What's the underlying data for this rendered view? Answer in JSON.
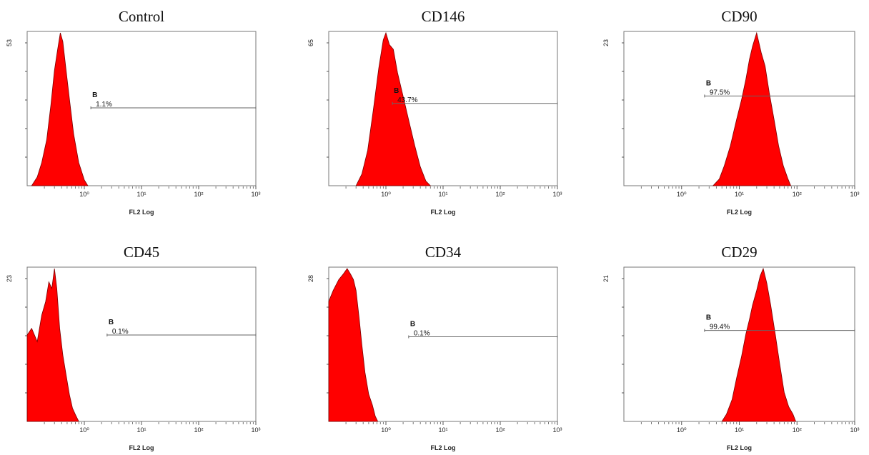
{
  "chart_data": [
    {
      "type": "area",
      "title": "Control",
      "xlabel": "FL2 Log",
      "xscale": "log",
      "xlim": [
        0.1,
        1000
      ],
      "ylabel_value": "53",
      "ylim": [
        0,
        53
      ],
      "x_tick_labels": [
        "10⁰",
        "10¹",
        "10²",
        "10³"
      ],
      "x_tick_values": [
        1,
        10,
        100,
        1000
      ],
      "gate": {
        "label": "B",
        "percent": "1.1%",
        "start": 1.3,
        "end": 1000,
        "level": 27
      },
      "x": [
        0.12,
        0.15,
        0.18,
        0.22,
        0.26,
        0.3,
        0.34,
        0.38,
        0.42,
        0.48,
        0.55,
        0.65,
        0.8,
        1.0,
        1.15
      ],
      "y": [
        0,
        3,
        8,
        16,
        28,
        40,
        47,
        53,
        50,
        40,
        30,
        18,
        8,
        2,
        0
      ]
    },
    {
      "type": "area",
      "title": "CD146",
      "xlabel": "FL2 Log",
      "xscale": "log",
      "xlim": [
        0.1,
        1000
      ],
      "ylabel_value": "65",
      "ylim": [
        0,
        65
      ],
      "x_tick_labels": [
        "10⁰",
        "10¹",
        "10²",
        "10³"
      ],
      "x_tick_values": [
        1,
        10,
        100,
        1000
      ],
      "gate": {
        "label": "B",
        "percent": "43.7%",
        "start": 1.3,
        "end": 1000,
        "level": 35
      },
      "x": [
        0.3,
        0.38,
        0.48,
        0.6,
        0.75,
        0.9,
        1.0,
        1.15,
        1.35,
        1.6,
        2.0,
        2.5,
        3.2,
        4.0,
        5.0,
        6.0
      ],
      "y": [
        0,
        5,
        15,
        32,
        50,
        62,
        65,
        60,
        58,
        48,
        38,
        28,
        17,
        8,
        2,
        0
      ]
    },
    {
      "type": "area",
      "title": "CD90",
      "xlabel": "FL2 Log",
      "xscale": "log",
      "xlim": [
        0.1,
        1000
      ],
      "ylabel_value": "23",
      "ylim": [
        0,
        23
      ],
      "x_tick_labels": [
        "10⁰",
        "10¹",
        "10²",
        "10³"
      ],
      "x_tick_values": [
        1,
        10,
        100,
        1000
      ],
      "gate": {
        "label": "B",
        "percent": "97.5%",
        "start": 2.5,
        "end": 1000,
        "level": 13.5
      },
      "x": [
        3.5,
        4.5,
        5.5,
        7,
        9,
        11,
        13,
        15,
        17,
        20,
        24,
        28,
        33,
        40,
        48,
        58,
        70,
        78
      ],
      "y": [
        0,
        1,
        3,
        6,
        10,
        13,
        16,
        19,
        21,
        23,
        20,
        18,
        14,
        10,
        6,
        3,
        1,
        0
      ]
    },
    {
      "type": "area",
      "title": "CD45",
      "xlabel": "FL2 Log",
      "xscale": "log",
      "xlim": [
        0.1,
        1000
      ],
      "ylabel_value": "23",
      "ylim": [
        0,
        23
      ],
      "x_tick_labels": [
        "10⁰",
        "10¹",
        "10²",
        "10³"
      ],
      "x_tick_values": [
        1,
        10,
        100,
        1000
      ],
      "gate": {
        "label": "B",
        "percent": "0.1%",
        "start": 2.5,
        "end": 1000,
        "level": 13
      },
      "x": [
        0.1,
        0.12,
        0.15,
        0.18,
        0.21,
        0.24,
        0.27,
        0.3,
        0.33,
        0.37,
        0.42,
        0.48,
        0.55,
        0.62,
        0.7,
        0.8
      ],
      "y": [
        13,
        14,
        12,
        16,
        18,
        21,
        20,
        23,
        20,
        14,
        10,
        7,
        4,
        2,
        1,
        0
      ]
    },
    {
      "type": "area",
      "title": "CD34",
      "xlabel": "FL2 Log",
      "xscale": "log",
      "xlim": [
        0.1,
        1000
      ],
      "ylabel_value": "28",
      "ylim": [
        0,
        28
      ],
      "x_tick_labels": [
        "10⁰",
        "10¹",
        "10²",
        "10³"
      ],
      "x_tick_values": [
        1,
        10,
        100,
        1000
      ],
      "gate": {
        "label": "B",
        "percent": "0.1%",
        "start": 2.5,
        "end": 1000,
        "level": 15.5
      },
      "x": [
        0.1,
        0.12,
        0.15,
        0.18,
        0.21,
        0.24,
        0.27,
        0.3,
        0.34,
        0.38,
        0.43,
        0.5,
        0.58,
        0.65,
        0.72
      ],
      "y": [
        22,
        24,
        26,
        27,
        28,
        27,
        26,
        24,
        19,
        14,
        9,
        5,
        3,
        1,
        0
      ]
    },
    {
      "type": "area",
      "title": "CD29",
      "xlabel": "FL2 Log",
      "xscale": "log",
      "xlim": [
        0.1,
        1000
      ],
      "ylabel_value": "21",
      "ylim": [
        0,
        21
      ],
      "x_tick_labels": [
        "10⁰",
        "10¹",
        "10²",
        "10³"
      ],
      "x_tick_values": [
        1,
        10,
        100,
        1000
      ],
      "gate": {
        "label": "B",
        "percent": "99.4%",
        "start": 2.5,
        "end": 1000,
        "level": 12.5
      },
      "x": [
        5,
        6,
        7.5,
        9,
        11,
        13,
        15,
        17,
        20,
        23,
        26,
        30,
        35,
        42,
        50,
        60,
        72,
        85,
        95
      ],
      "y": [
        0,
        1,
        3,
        6,
        9,
        12,
        14,
        16,
        18,
        20,
        21,
        19,
        16,
        12,
        8,
        4,
        2,
        1,
        0
      ]
    }
  ],
  "colors": {
    "fill": "#ff0000",
    "edge": "#7a0000",
    "axis": "#555555",
    "gate_line": "#666666"
  }
}
